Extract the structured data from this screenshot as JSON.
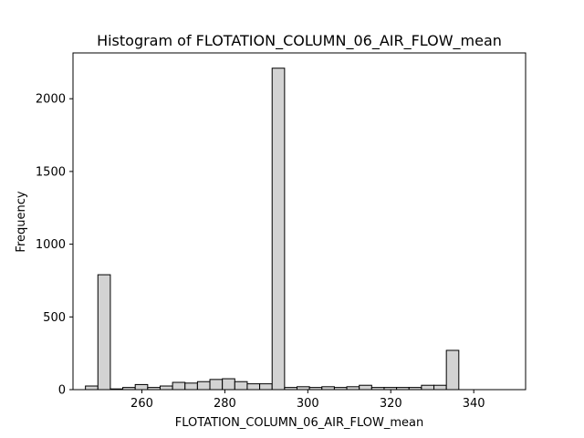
{
  "chart_data": {
    "type": "bar",
    "title": "Histogram of FLOTATION_COLUMN_06_AIR_FLOW_mean",
    "xlabel": "FLOTATION_COLUMN_06_AIR_FLOW_mean",
    "ylabel": "Frequency",
    "xlim": [
      243.4,
      352.5
    ],
    "ylim": [
      0,
      2315
    ],
    "xticks": [
      260,
      280,
      300,
      320,
      340
    ],
    "yticks": [
      0,
      500,
      1000,
      1500,
      2000
    ],
    "bin_start": 246.4,
    "bin_width": 3.0,
    "bar_fill": "#d3d3d3",
    "bar_edge": "#000000",
    "values": [
      25,
      790,
      5,
      15,
      35,
      15,
      25,
      50,
      45,
      55,
      70,
      75,
      55,
      40,
      40,
      2210,
      15,
      20,
      15,
      20,
      15,
      20,
      30,
      15,
      15,
      15,
      15,
      30,
      30,
      270
    ]
  }
}
